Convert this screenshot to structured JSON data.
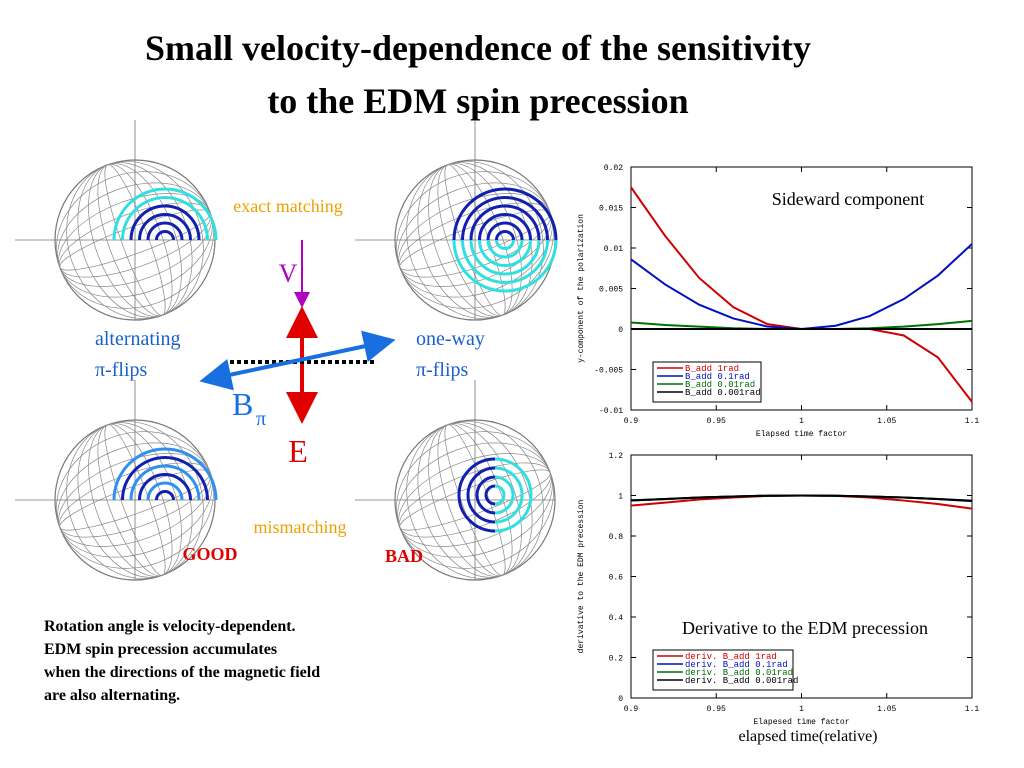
{
  "slide": {
    "title": [
      "Small velocity-dependence of the sensitivity",
      "to the EDM spin precession"
    ],
    "exact": "exact matching",
    "mismatch": "mismatching",
    "v": "V",
    "e": "E",
    "b": "B",
    "b_sub": "π",
    "alt": [
      "alternating",
      "π-flips"
    ],
    "oneway": [
      "one-way",
      "π-flips"
    ],
    "good": "GOOD",
    "bad": "BAD",
    "note": [
      "Rotation angle is velocity-dependent.",
      "EDM spin precession accumulates",
      "when the directions of the magnetic field",
      "are also alternating."
    ]
  },
  "chart_data": [
    {
      "type": "line",
      "annotation": "Sideward component",
      "xlabel": "Elapsed time factor",
      "ylabel": "y-component of the polarization",
      "x": [
        0.9,
        0.92,
        0.94,
        0.96,
        0.98,
        1.0,
        1.02,
        1.04,
        1.06,
        1.08,
        1.1
      ],
      "xlim": [
        0.9,
        1.1
      ],
      "xticks": [
        0.9,
        0.95,
        1,
        1.05,
        1.1
      ],
      "ylim": [
        -0.01,
        0.02
      ],
      "yticks": [
        -0.01,
        -0.005,
        0,
        0.005,
        0.01,
        0.015,
        0.02
      ],
      "legend": "lower left",
      "series": [
        {
          "name": "B_add 1rad",
          "color": "#d00000",
          "values": [
            0.0175,
            0.0115,
            0.0063,
            0.0027,
            0.0006,
            0,
            0,
            0,
            -0.0008,
            -0.0035,
            -0.009
          ]
        },
        {
          "name": "B_add 0.1rad",
          "color": "#0010c0",
          "values": [
            0.0086,
            0.0055,
            0.003,
            0.0013,
            0.0003,
            0,
            0.0004,
            0.0016,
            0.0037,
            0.0066,
            0.0105
          ]
        },
        {
          "name": "B_add 0.01rad",
          "color": "#007000",
          "values": [
            0.0008,
            0.0005,
            0.0003,
            0.0001,
            0,
            0,
            0,
            0.0001,
            0.0003,
            0.0006,
            0.001
          ]
        },
        {
          "name": "B_add 0.001rad",
          "color": "#000000",
          "values": [
            0,
            0,
            0,
            0,
            0,
            0,
            0,
            0,
            0,
            0,
            0
          ]
        }
      ]
    },
    {
      "type": "line",
      "annotation": "Derivative to the EDM precession",
      "caption": "elapsed time(relative)",
      "xlabel": "Elapesed time factor",
      "ylabel": "derivative to the EDM precession",
      "x": [
        0.9,
        0.92,
        0.94,
        0.96,
        0.98,
        1.0,
        1.02,
        1.04,
        1.06,
        1.08,
        1.1
      ],
      "xlim": [
        0.9,
        1.1
      ],
      "xticks": [
        0.9,
        0.95,
        1,
        1.05,
        1.1
      ],
      "ylim": [
        0,
        1.2
      ],
      "yticks": [
        0,
        0.2,
        0.4,
        0.6,
        0.8,
        1,
        1.2
      ],
      "legend": "lower left",
      "series": [
        {
          "name": "deriv. B_add 1rad",
          "color": "#d00000",
          "values": [
            0.95,
            0.965,
            0.98,
            0.99,
            0.998,
            1,
            0.998,
            0.99,
            0.975,
            0.958,
            0.935
          ]
        },
        {
          "name": "deriv. B_add 0.1rad",
          "color": "#0010c0",
          "values": [
            0.975,
            0.982,
            0.99,
            0.995,
            0.999,
            1,
            0.999,
            0.995,
            0.99,
            0.982,
            0.972
          ]
        },
        {
          "name": "deriv. B_add 0.01rad",
          "color": "#007000",
          "values": [
            0.976,
            0.983,
            0.99,
            0.995,
            0.999,
            1,
            0.999,
            0.995,
            0.99,
            0.983,
            0.974
          ]
        },
        {
          "name": "deriv. B_add 0.001rad",
          "color": "#000000",
          "values": [
            0.976,
            0.983,
            0.99,
            0.995,
            0.999,
            1,
            0.999,
            0.995,
            0.99,
            0.983,
            0.974
          ]
        }
      ]
    }
  ]
}
